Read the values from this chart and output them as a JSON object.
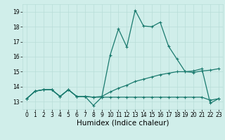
{
  "xlabel": "Humidex (Indice chaleur)",
  "xlim": [
    -0.5,
    23.5
  ],
  "ylim": [
    12.5,
    19.5
  ],
  "yticks": [
    13,
    14,
    15,
    16,
    17,
    18,
    19
  ],
  "xticks": [
    0,
    1,
    2,
    3,
    4,
    5,
    6,
    7,
    8,
    9,
    10,
    11,
    12,
    13,
    14,
    15,
    16,
    17,
    18,
    19,
    20,
    21,
    22,
    23
  ],
  "background_color": "#d0eeea",
  "grid_color": "#b8ddd8",
  "line_color": "#1a7a6e",
  "line1_y": [
    13.2,
    13.7,
    13.8,
    13.8,
    13.35,
    13.8,
    13.35,
    13.35,
    12.75,
    13.3,
    16.1,
    17.85,
    16.65,
    19.1,
    18.05,
    18.0,
    18.3,
    16.7,
    15.85,
    15.0,
    15.05,
    15.2,
    12.9,
    13.2
  ],
  "line2_y": [
    13.2,
    13.7,
    13.8,
    13.8,
    13.35,
    13.8,
    13.35,
    13.35,
    13.3,
    13.3,
    13.3,
    13.3,
    13.3,
    13.3,
    13.3,
    13.3,
    13.3,
    13.3,
    13.3,
    13.3,
    13.3,
    13.3,
    13.1,
    13.2
  ],
  "line3_y": [
    13.2,
    13.7,
    13.8,
    13.8,
    13.35,
    13.8,
    13.35,
    13.35,
    13.3,
    13.35,
    13.65,
    13.9,
    14.1,
    14.35,
    14.5,
    14.65,
    14.8,
    14.9,
    15.0,
    15.0,
    14.95,
    15.05,
    15.1,
    15.2
  ],
  "linewidth": 0.9,
  "markersize": 3.0,
  "tick_fontsize": 5.5,
  "xlabel_fontsize": 7.5
}
